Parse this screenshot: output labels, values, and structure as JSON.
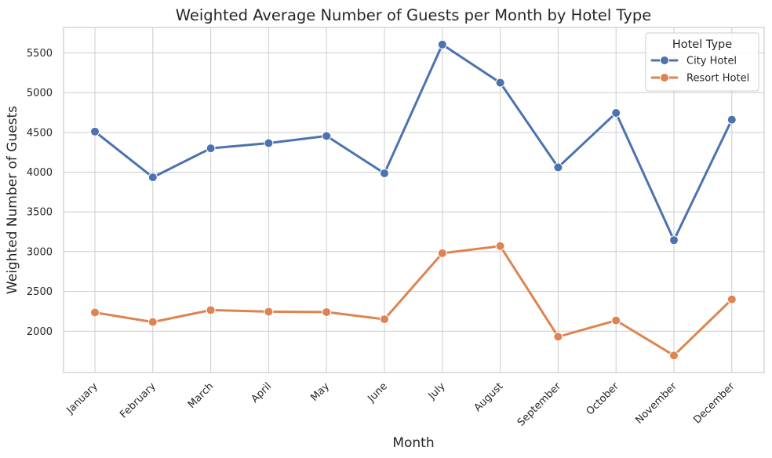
{
  "chart_data": {
    "type": "line",
    "title": "Weighted Average Number of Guests per Month by Hotel Type",
    "xlabel": "Month",
    "ylabel": "Weighted Number of Guests",
    "categories": [
      "January",
      "February",
      "March",
      "April",
      "May",
      "June",
      "July",
      "August",
      "September",
      "October",
      "November",
      "December"
    ],
    "ylim": [
      1480,
      5820
    ],
    "yticks": [
      2000,
      2500,
      3000,
      3500,
      4000,
      4500,
      5000,
      5500
    ],
    "grid": true,
    "legend": {
      "title": "Hotel Type",
      "position": "top-right"
    },
    "series": [
      {
        "name": "City Hotel",
        "color": "#4c72b0",
        "values": [
          4510,
          3935,
          4300,
          4365,
          4455,
          3985,
          5605,
          5125,
          4060,
          4745,
          3145,
          4660
        ]
      },
      {
        "name": "Resort Hotel",
        "color": "#dd8452",
        "values": [
          2235,
          2115,
          2265,
          2245,
          2240,
          2150,
          2980,
          3070,
          1930,
          2135,
          1695,
          2400
        ]
      }
    ]
  }
}
